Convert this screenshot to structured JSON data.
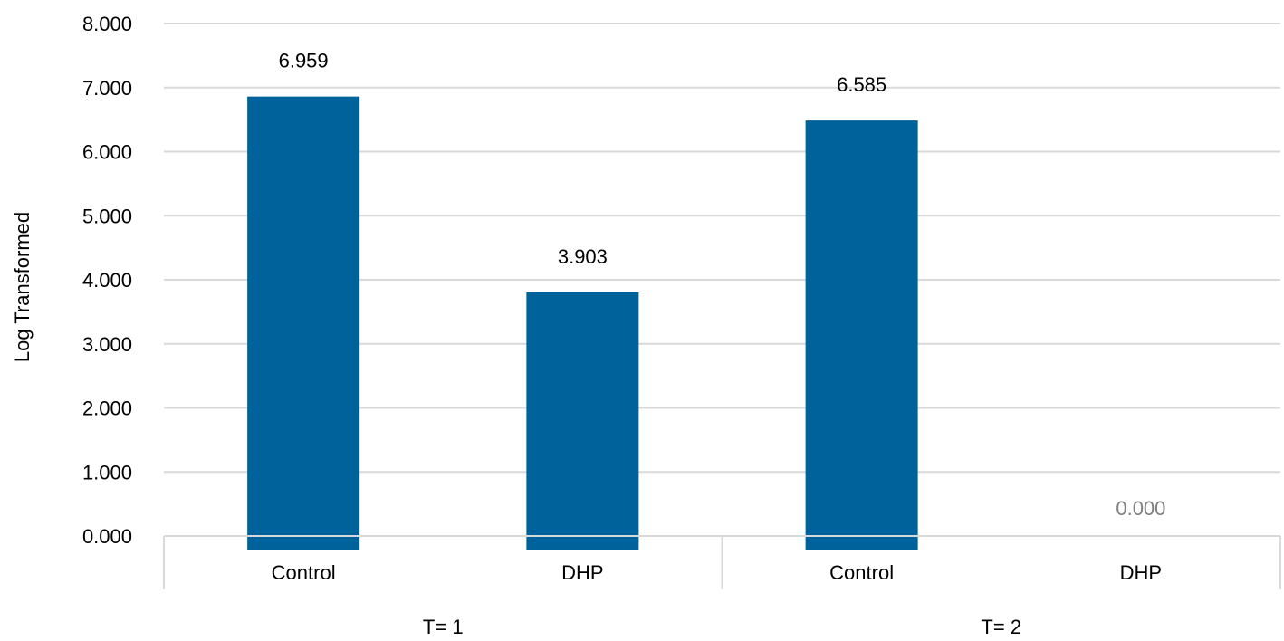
{
  "chart_data": {
    "type": "bar",
    "title": "",
    "xlabel": "",
    "ylabel": "Log Transformed",
    "ylim": [
      0,
      8
    ],
    "yticks": [
      "0.000",
      "1.000",
      "2.000",
      "3.000",
      "4.000",
      "5.000",
      "6.000",
      "7.000",
      "8.000"
    ],
    "grid": true,
    "legend": "none",
    "groups": [
      {
        "label": "T= 1",
        "categories": [
          "Control",
          "DHP"
        ]
      },
      {
        "label": "T= 2",
        "categories": [
          "Control",
          "DHP"
        ]
      }
    ],
    "categories": [
      "Control",
      "DHP",
      "Control",
      "DHP"
    ],
    "values": [
      6.959,
      3.903,
      6.585,
      0.0
    ],
    "value_labels": [
      "6.959",
      "3.903",
      "6.585",
      "0.000"
    ],
    "colors": {
      "bar": "#00629b",
      "grid": "#d9d9d9",
      "axis_text": "#000000",
      "zero_label": "#7f7f7f"
    }
  }
}
